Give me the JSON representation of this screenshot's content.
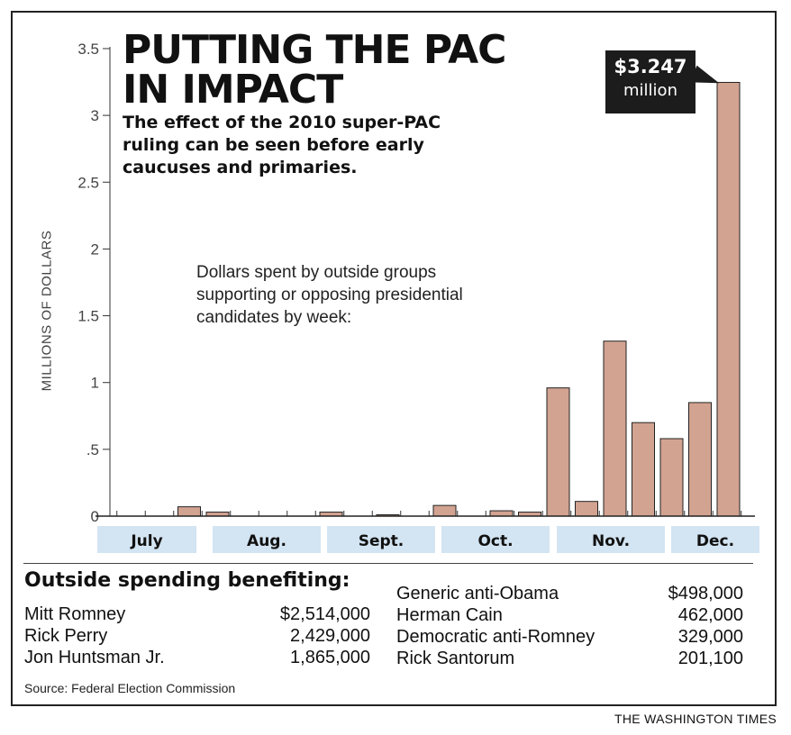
{
  "title_line1": "PUTTING THE PAC",
  "title_line2": "IN IMPACT",
  "subtitle": "The effect of the 2010 super-PAC ruling can be seen before early caucuses and primaries.",
  "description": "Dollars spent by outside groups supporting or opposing presidential candidates by week:",
  "callout": {
    "amount": "$3.247",
    "unit": "million"
  },
  "chart_data": {
    "type": "bar",
    "ylabel": "MILLIONS OF DOLLARS",
    "ylim": [
      0,
      3.5
    ],
    "y_ticks": [
      "0",
      ".5",
      "1",
      "1.5",
      "2",
      "2.5",
      "3",
      "3.5"
    ],
    "y_tick_values": [
      0,
      0.5,
      1,
      1.5,
      2,
      2.5,
      3,
      3.5
    ],
    "months": [
      {
        "label": "July",
        "weeks": [
          0,
          0,
          0,
          0.07
        ]
      },
      {
        "label": "Aug.",
        "weeks": [
          0.03,
          0,
          0,
          0
        ]
      },
      {
        "label": "Sept.",
        "weeks": [
          0.03,
          0,
          0.01,
          0
        ]
      },
      {
        "label": "Oct.",
        "weeks": [
          0.08,
          0,
          0.04,
          0.03
        ]
      },
      {
        "label": "Nov.",
        "weeks": [
          0.96,
          0.11,
          1.31,
          0.7
        ]
      },
      {
        "label": "Dec.",
        "weeks": [
          0.58,
          0.85,
          3.247
        ]
      }
    ],
    "bar_color": "#d2a391",
    "month_box_color": "#d3e4f2"
  },
  "legend": {
    "title": "Outside spending benefiting:",
    "left": [
      {
        "name": "Mitt Romney",
        "value": "$2,514,000"
      },
      {
        "name": "Rick Perry",
        "value": "2,429,000"
      },
      {
        "name": "Jon Huntsman Jr.",
        "value": "1,865,000"
      }
    ],
    "right": [
      {
        "name": "Generic anti-Obama",
        "value": "$498,000"
      },
      {
        "name": "Herman Cain",
        "value": "462,000"
      },
      {
        "name": "Democratic anti-Romney",
        "value": "329,000"
      },
      {
        "name": "Rick Santorum",
        "value": "201,100"
      }
    ]
  },
  "source": "Source: Federal Election Commission",
  "credit": "THE WASHINGTON TIMES"
}
